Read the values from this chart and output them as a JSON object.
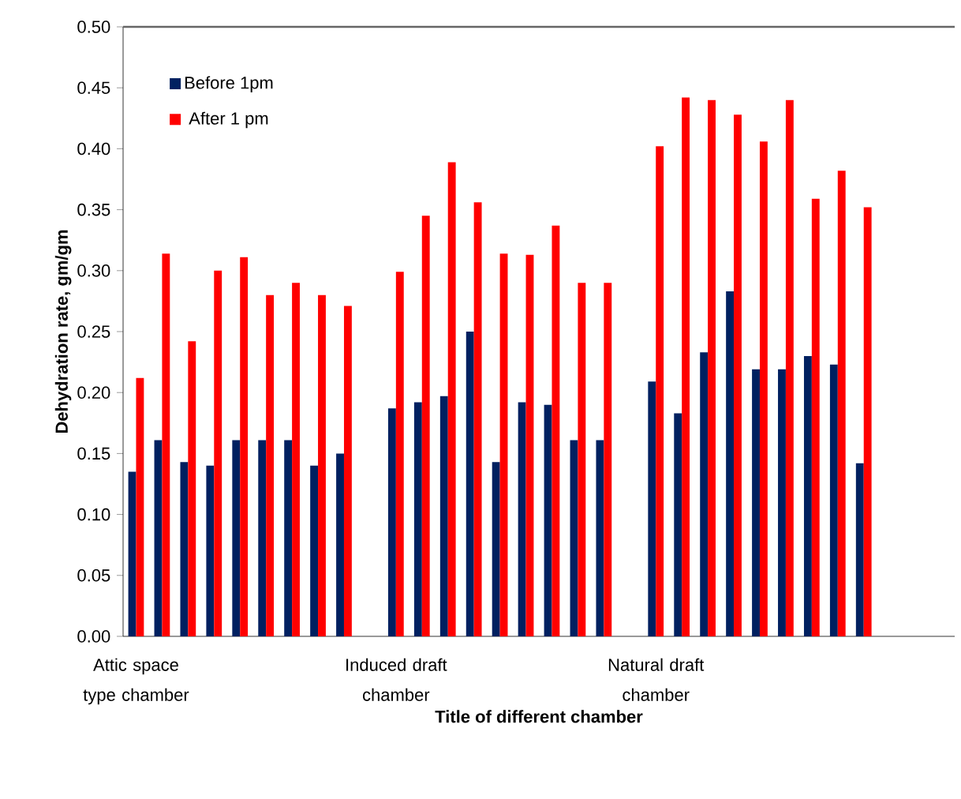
{
  "chart_data": {
    "type": "bar",
    "xlabel": "Title of different chamber",
    "ylabel": "Dehydration rate,  gm/gm",
    "categories": [
      "Attic space type chamber",
      null,
      null,
      null,
      null,
      null,
      null,
      null,
      null,
      null,
      "Induced draft chamber",
      null,
      null,
      null,
      null,
      null,
      null,
      null,
      null,
      null,
      "Natural draft chamber",
      null,
      null,
      null,
      null,
      null,
      null,
      null,
      null,
      null,
      null,
      null
    ],
    "series": [
      {
        "name": "Before 1pm",
        "color": "#002060",
        "values": [
          0.135,
          0.161,
          0.143,
          0.14,
          0.161,
          0.161,
          0.161,
          0.14,
          0.15,
          null,
          0.187,
          0.192,
          0.197,
          0.25,
          0.143,
          0.192,
          0.19,
          0.161,
          0.161,
          null,
          0.209,
          0.183,
          0.233,
          0.283,
          0.219,
          0.219,
          0.23,
          0.223,
          0.142,
          null,
          null,
          null
        ]
      },
      {
        "name": "After 1 pm",
        "color": "#ff0000",
        "values": [
          0.212,
          0.314,
          0.242,
          0.3,
          0.311,
          0.28,
          0.29,
          0.28,
          0.271,
          null,
          0.299,
          0.345,
          0.389,
          0.356,
          0.314,
          0.313,
          0.337,
          0.29,
          0.29,
          null,
          0.402,
          0.442,
          0.44,
          0.428,
          0.406,
          0.44,
          0.359,
          0.382,
          0.352,
          null,
          null,
          null
        ]
      }
    ],
    "ylim": [
      0,
      0.5
    ],
    "yticks": [
      {
        "value": 0,
        "label": "0.00"
      },
      {
        "value": 0.05,
        "label": "0.05"
      },
      {
        "value": 0.1,
        "label": "0.10"
      },
      {
        "value": 0.15,
        "label": "0.15"
      },
      {
        "value": 0.2,
        "label": "0.20"
      },
      {
        "value": 0.25,
        "label": "0.25"
      },
      {
        "value": 0.3,
        "label": "0.30"
      },
      {
        "value": 0.35,
        "label": "0.35"
      },
      {
        "value": 0.4,
        "label": "0.40"
      },
      {
        "value": 0.45,
        "label": "0.45"
      },
      {
        "value": 0.5,
        "label": "0.50"
      }
    ],
    "legend": "top left"
  }
}
